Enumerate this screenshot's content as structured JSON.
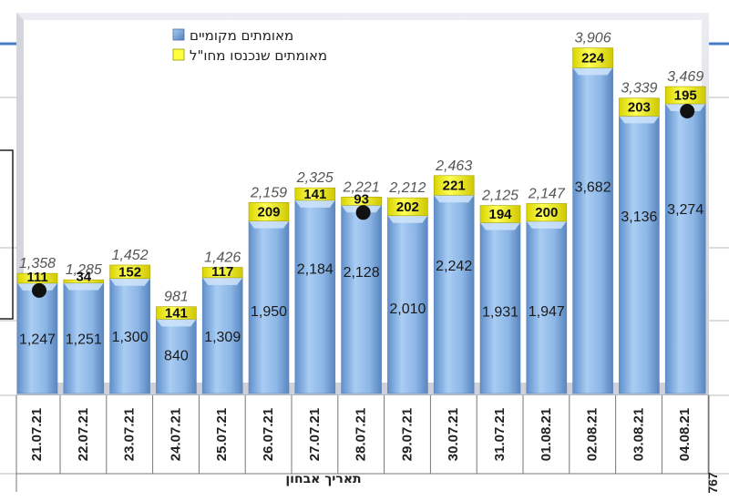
{
  "chart_data": {
    "type": "bar",
    "stacked": true,
    "categories": [
      "21.07.21",
      "22.07.21",
      "23.07.21",
      "24.07.21",
      "25.07.21",
      "26.07.21",
      "27.07.21",
      "28.07.21",
      "29.07.21",
      "30.07.21",
      "31.07.21",
      "01.08.21",
      "02.08.21",
      "03.08.21",
      "04.08.21"
    ],
    "series": [
      {
        "name": "מאומתים מקומיים",
        "color": "#8fb8e6",
        "values": [
          1247,
          1251,
          1300,
          840,
          1309,
          1950,
          2184,
          2128,
          2010,
          2242,
          1931,
          1947,
          3682,
          3136,
          3274
        ]
      },
      {
        "name": "מאומתים שנכנסו מחו\"ל",
        "color": "#ffff3c",
        "values": [
          111,
          34,
          152,
          141,
          117,
          209,
          141,
          93,
          202,
          221,
          194,
          200,
          224,
          203,
          195
        ]
      }
    ],
    "totals": [
      "1,358",
      "1,285",
      "1,452",
      "981",
      "1,426",
      "2,159",
      "2,325",
      "2,221",
      "2,212",
      "2,463",
      "2,125",
      "2,147",
      "3,906",
      "3,339",
      "3,469"
    ],
    "local_labels": [
      "1,247",
      "1,251",
      "1,300",
      "840",
      "1,309",
      "1,950",
      "2,184",
      "2,128",
      "2,010",
      "2,242",
      "1,931",
      "1,947",
      "3,682",
      "3,136",
      "3,274"
    ],
    "import_labels": [
      "111",
      "34",
      "152",
      "141",
      "117",
      "209",
      "141",
      "93",
      "202",
      "221",
      "194",
      "200",
      "224",
      "203",
      "195"
    ],
    "markers_at": [
      "21.07.21",
      "28.07.21",
      "04.08.21"
    ],
    "xlabel": "תאריך אבחון",
    "ylim": [
      0,
      4200
    ],
    "grid": false,
    "legend_position": "top"
  },
  "page_number": "767"
}
